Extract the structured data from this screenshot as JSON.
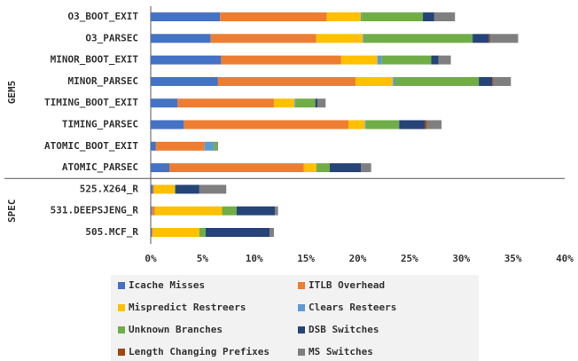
{
  "chart_data": {
    "type": "stacked_barh",
    "categories": [
      "O3_BOOT_EXIT",
      "O3_PARSEC",
      "MINOR_BOOT_EXIT",
      "MINOR_PARSEC",
      "TIMING_BOOT_EXIT",
      "TIMING_PARSEC",
      "ATOMIC_BOOT_EXIT",
      "ATOMIC_PARSEC",
      "525.X264_R",
      "531.DEEPSJENG_R",
      "505.MCF_R"
    ],
    "groups": [
      {
        "name": "GEM5",
        "size": 8
      },
      {
        "name": "SPEC",
        "size": 3
      }
    ],
    "series": [
      {
        "name": "Icache Misses",
        "color": "#4472c4",
        "values": [
          6.7,
          5.8,
          6.8,
          6.5,
          2.6,
          3.2,
          0.5,
          1.8,
          0.2,
          0.1,
          0.1
        ]
      },
      {
        "name": "ITLB Overhead",
        "color": "#ed7d31",
        "values": [
          10.3,
          10.2,
          11.6,
          13.3,
          9.3,
          15.9,
          4.7,
          13.0,
          0.1,
          0.3,
          0.1
        ]
      },
      {
        "name": "Mispredict Restreers",
        "color": "#ffc000",
        "values": [
          3.3,
          4.5,
          3.5,
          3.6,
          2.0,
          1.6,
          0,
          1.2,
          2.0,
          6.5,
          4.5
        ]
      },
      {
        "name": "Clears Resteers",
        "color": "#5b9bd5",
        "values": [
          0.1,
          0.1,
          0.4,
          0.2,
          0.1,
          0.1,
          0.9,
          0,
          0,
          0,
          0
        ]
      },
      {
        "name": "Unknown Branches",
        "color": "#70ad47",
        "values": [
          5.9,
          10.5,
          4.8,
          8.1,
          1.9,
          3.2,
          0.3,
          1.3,
          0.1,
          1.4,
          0.6
        ]
      },
      {
        "name": "DSB Switches",
        "color": "#264478",
        "values": [
          1.1,
          1.6,
          0.7,
          1.3,
          0.2,
          2.5,
          0,
          3.0,
          2.3,
          3.7,
          6.2
        ]
      },
      {
        "name": "Length Changing Prefixes",
        "color": "#9e480e",
        "values": [
          0,
          0.1,
          0,
          0.1,
          0,
          0.2,
          0,
          0,
          0,
          0,
          0
        ]
      },
      {
        "name": "MS Switches",
        "color": "#7f7f7f",
        "values": [
          2.0,
          2.7,
          1.2,
          1.7,
          0.8,
          1.4,
          0.1,
          1.0,
          2.6,
          0.3,
          0.4
        ]
      }
    ],
    "xlim": [
      0,
      40
    ],
    "xticks": [
      {
        "value": 0,
        "label": "0%"
      },
      {
        "value": 5,
        "label": "5%"
      },
      {
        "value": 10,
        "label": "10%"
      },
      {
        "value": 15,
        "label": "15%"
      },
      {
        "value": 20,
        "label": "20%"
      },
      {
        "value": 25,
        "label": "25%"
      },
      {
        "value": 30,
        "label": "30%"
      },
      {
        "value": 35,
        "label": "35%"
      },
      {
        "value": 40,
        "label": "40%"
      }
    ],
    "legend": "bottom"
  }
}
